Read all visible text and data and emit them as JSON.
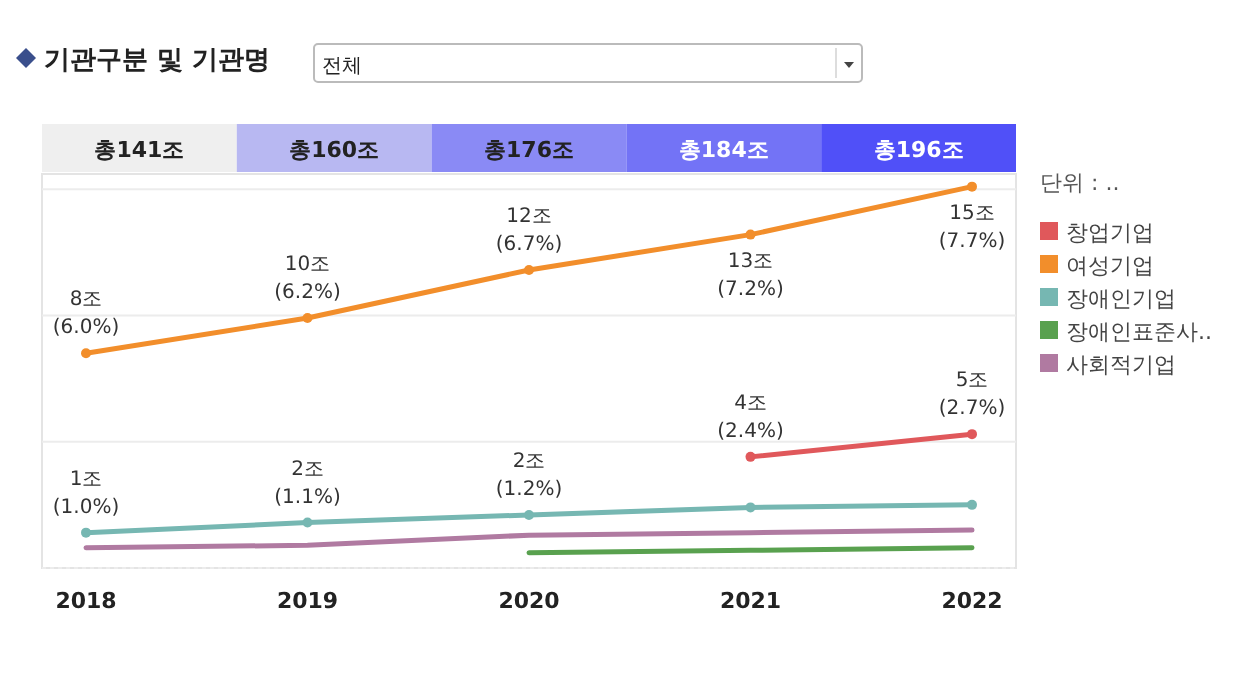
{
  "chart_data": {
    "type": "line",
    "title": "기관구분 및 기관명",
    "annotations": [
      "전체"
    ],
    "categories": [
      "2018",
      "2019",
      "2020",
      "2021",
      "2022"
    ],
    "totals": [
      "총141조",
      "총160조",
      "총176조",
      "총184조",
      "총196조"
    ],
    "ylim": [
      0,
      15.6
    ],
    "yticks": [
      {
        "value": 0,
        "label": null
      },
      {
        "value": 5,
        "label": null
      },
      {
        "value": 10,
        "label": null
      },
      {
        "value": 15,
        "label": null
      }
    ],
    "tick_labels": "x",
    "grid": "y",
    "legend": "right",
    "legend_title": "단위 : ..",
    "series": [
      {
        "name": "창업기업",
        "color": "#e0585b",
        "marker": "circle",
        "values": [
          null,
          null,
          null,
          4.4,
          5.3
        ],
        "value_labels": [
          null,
          null,
          null,
          "4조\n(2.4%)",
          "5조\n(2.7%)"
        ]
      },
      {
        "name": "여성기업",
        "color": "#f28e2b",
        "marker": "circle",
        "values": [
          8.5,
          9.9,
          11.8,
          13.2,
          15.1
        ],
        "value_labels": [
          "8조\n(6.0%)",
          "10조\n(6.2%)",
          "12조\n(6.7%)",
          "13조\n(7.2%)",
          "15조\n(7.7%)"
        ]
      },
      {
        "name": "장애인기업",
        "color": "#76b7b2",
        "marker": "circle",
        "values": [
          1.4,
          1.8,
          2.1,
          2.4,
          2.5
        ],
        "value_labels": [
          "1조\n(1.0%)",
          "2조\n(1.1%)",
          "2조\n(1.2%)",
          null,
          null
        ]
      },
      {
        "name": "장애인표준사..",
        "color": "#59a14f",
        "marker": "none",
        "values": [
          null,
          null,
          0.6,
          0.7,
          0.8
        ]
      },
      {
        "name": "사회적기업",
        "color": "#b07aa1",
        "marker": "none",
        "values": [
          0.8,
          0.9,
          1.3,
          1.4,
          1.5
        ]
      }
    ]
  }
}
